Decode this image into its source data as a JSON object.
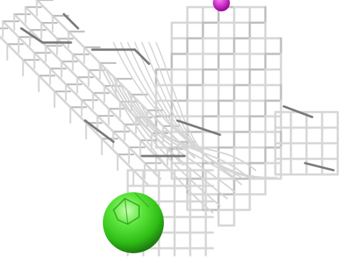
{
  "scene": {
    "type": "molecular-viewer-render",
    "colors": {
      "background": "#ffffff",
      "mesh_light": "#d6d6d6",
      "mesh_mid": "#bdbdbd",
      "mesh_dark": "#7a7a7a",
      "sphere": "#35d11e",
      "sphere_highlight": "#b7ff9a",
      "sphere_shadow": "#1e8a12",
      "magenta_atom": "#c000c0"
    },
    "objects": [
      {
        "name": "electron-density-mesh",
        "kind": "wireframe-grid"
      },
      {
        "name": "green-sphere",
        "kind": "atom-sphere"
      },
      {
        "name": "magenta-atom",
        "kind": "atom-sphere",
        "partially_visible": true
      }
    ]
  }
}
